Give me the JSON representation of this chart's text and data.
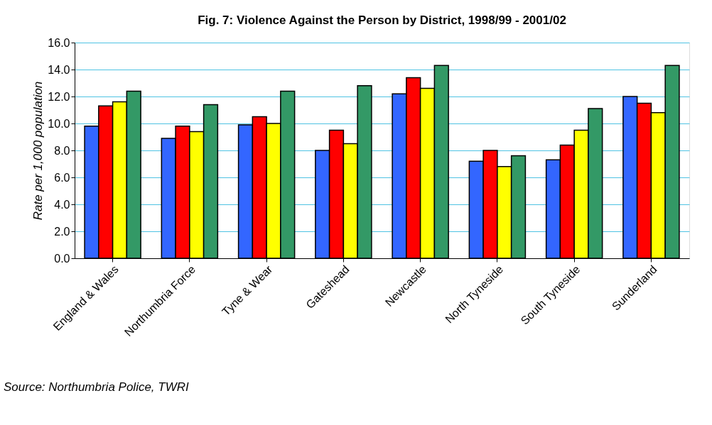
{
  "chart_data": {
    "type": "bar",
    "title": "Fig. 7: Violence Against the Person by District, 1998/99 - 2001/02",
    "ylabel": "Rate per 1,000 population",
    "categories": [
      "England & Wales",
      "Northumbria Force",
      "Tyne & Wear",
      "Gateshead",
      "Newcastle",
      "North Tyneside",
      "South Tyneside",
      "Sunderland"
    ],
    "series": [
      {
        "color": "#3366ff",
        "values": [
          9.8,
          8.9,
          9.9,
          8.0,
          12.2,
          7.2,
          7.3,
          12.0
        ]
      },
      {
        "color": "#ff0000",
        "values": [
          11.3,
          9.8,
          10.5,
          9.5,
          13.4,
          8.0,
          8.4,
          11.5
        ]
      },
      {
        "color": "#ffff00",
        "values": [
          11.6,
          9.4,
          10.0,
          8.5,
          12.6,
          6.8,
          9.5,
          10.8
        ]
      },
      {
        "color": "#339966",
        "values": [
          12.4,
          11.4,
          12.4,
          12.8,
          14.3,
          7.6,
          11.1,
          14.3
        ]
      }
    ],
    "ylim": [
      0,
      16
    ],
    "yticks": [
      {
        "value": 0,
        "label": "0.0"
      },
      {
        "value": 2,
        "label": "2.0"
      },
      {
        "value": 4,
        "label": "4.0"
      },
      {
        "value": 6,
        "label": "6.0"
      },
      {
        "value": 8,
        "label": "8.0"
      },
      {
        "value": 10,
        "label": "10.0"
      },
      {
        "value": 12,
        "label": "12.0"
      },
      {
        "value": 14,
        "label": "14.0"
      },
      {
        "value": 16,
        "label": "16.0"
      }
    ],
    "grid": "y",
    "legend": false,
    "annotations": [
      "Source: Northumbria Police, TWRI"
    ]
  }
}
